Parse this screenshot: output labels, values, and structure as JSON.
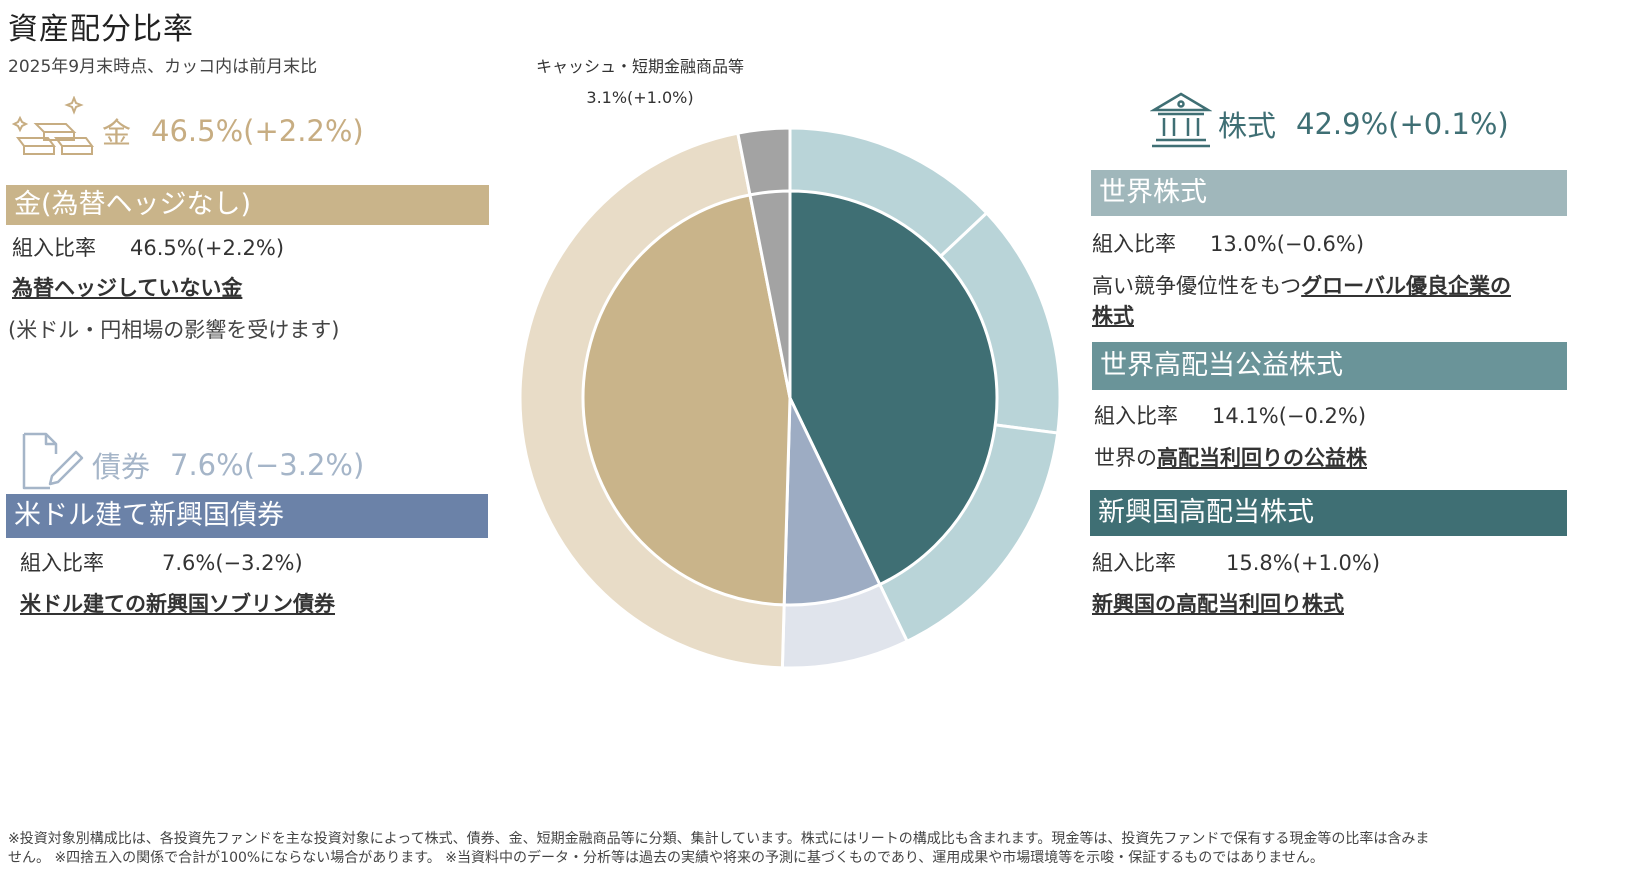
{
  "header": {
    "title": "資産配分比率",
    "subtitle": "2025年9月末時点、カッコ内は前月末比"
  },
  "gold": {
    "label": "金",
    "value": "46.5%(+2.2%)",
    "band_label": "金(為替ヘッジなし)",
    "ratio_label": "組入比率",
    "ratio_value": "46.5%(+2.2%)",
    "desc_link": "為替ヘッジしていない金",
    "note": "(米ドル・円相場の影響を受けます)",
    "color": "#c9b48a"
  },
  "bond": {
    "label": "債券",
    "value": "7.6%(−3.2%)",
    "band_label": "米ドル建て新興国債券",
    "ratio_label": "組入比率",
    "ratio_value": "7.6%(−3.2%)",
    "desc_link": "米ドル建ての新興国ソブリン債券",
    "color": "#6b82a8"
  },
  "stock": {
    "label": "株式",
    "value": "42.9%(+0.1%)",
    "color": "#3f6f74",
    "funds": [
      {
        "band_label": "世界株式",
        "ratio_label": "組入比率",
        "ratio_value": "13.0%(−0.6%)",
        "desc_plain": "高い競争優位性をもつ",
        "desc_link": "グローバル優良企業の",
        "desc_link2": "株式",
        "color": "#a0b7bb"
      },
      {
        "band_label": "世界高配当公益株式",
        "ratio_label": "組入比率",
        "ratio_value": "14.1%(−0.2%)",
        "desc_plain": "世界の",
        "desc_link": "高配当利回りの公益株",
        "color": "#6a9499"
      },
      {
        "band_label": "新興国高配当株式",
        "ratio_label": "組入比率",
        "ratio_value": "15.8%(+1.0%)",
        "desc_link": "新興国の高配当利回り株式",
        "color": "#3f6f74"
      }
    ]
  },
  "cash": {
    "label": "キャッシュ・短期金融商品等",
    "value": "3.1%(+1.0%)"
  },
  "chart_data": {
    "type": "pie",
    "inner": {
      "order": "clockwise from top",
      "slices": [
        {
          "name": "株式",
          "value": 42.9,
          "color": "#3f6f74"
        },
        {
          "name": "債券",
          "value": 7.6,
          "color": "#9dacc3"
        },
        {
          "name": "金",
          "value": 46.5,
          "color": "#c9b48a"
        },
        {
          "name": "キャッシュ・短期金融商品等",
          "value": 3.1,
          "color": "#a3a3a3"
        }
      ]
    },
    "outer": {
      "order": "clockwise from top",
      "slices": [
        {
          "name": "世界株式",
          "value": 13.0,
          "color": "#b9d4d8"
        },
        {
          "name": "世界高配当公益株式",
          "value": 14.1,
          "color": "#b9d4d8"
        },
        {
          "name": "新興国高配当株式",
          "value": 15.8,
          "color": "#b9d4d8"
        },
        {
          "name": "米ドル建て新興国債券",
          "value": 7.6,
          "color": "#e0e4ec"
        },
        {
          "name": "金(為替ヘッジなし)",
          "value": 46.5,
          "color": "#e8dcc7"
        },
        {
          "name": "キャッシュ・短期金融商品等",
          "value": 3.1,
          "color": "#a3a3a3"
        }
      ]
    }
  },
  "footer": {
    "line1": "※投資対象別構成比は、各投資先ファンドを主な投資対象によって株式、債券、金、短期金融商品等に分類、集計しています。株式にはリートの構成比も含まれます。現金等は、投資先ファンドで保有する現金等の比率は含みま",
    "line2": "せん。 ※四捨五入の関係で合計が100%にならない場合があります。 ※当資料中のデータ・分析等は過去の実績や将来の予測に基づくものであり、運用成果や市場環境等を示唆・保証するものではありません。"
  }
}
